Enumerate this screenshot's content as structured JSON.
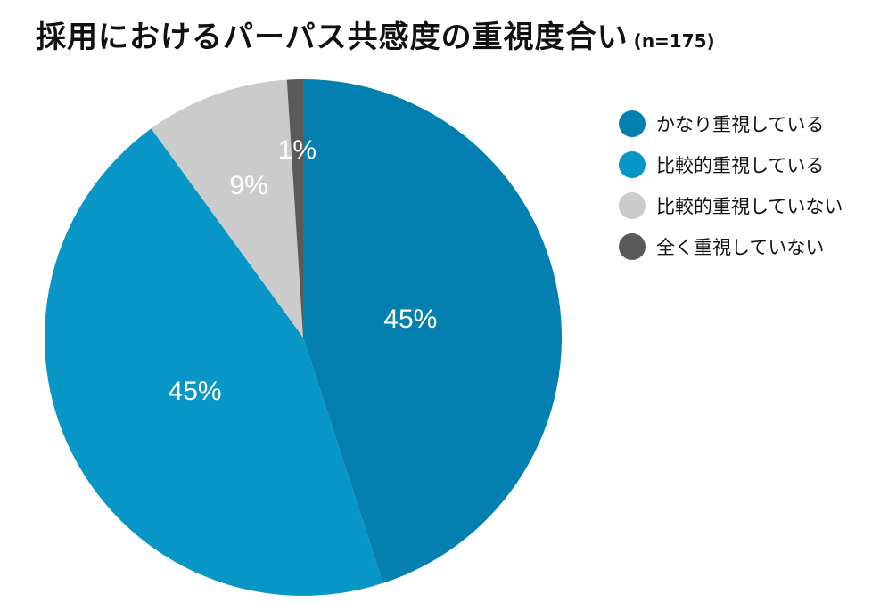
{
  "title": "採用におけるパーパス共感度の重視度合い",
  "subtitle": "(n=175)",
  "colors": {
    "very_important": "#0380B0",
    "somewhat_important": "#0896C6",
    "not_very_important": "#CBCBCB",
    "not_important": "#5A5A5A"
  },
  "chart_data": {
    "type": "pie",
    "title": "採用におけるパーパス共感度の重視度合い",
    "subtitle": "(n=175)",
    "start_angle_deg": 0,
    "direction": "clockwise",
    "legend_position": "right",
    "slices": [
      {
        "label": "かなり重視している",
        "value": 45,
        "display": "45%",
        "color": "#0380B0"
      },
      {
        "label": "比較的重視している",
        "value": 45,
        "display": "45%",
        "color": "#0896C6"
      },
      {
        "label": "比較的重視していない",
        "value": 9,
        "display": "9%",
        "color": "#CBCBCB"
      },
      {
        "label": "全く重視していない",
        "value": 1,
        "display": "1%",
        "color": "#5A5A5A"
      }
    ]
  }
}
